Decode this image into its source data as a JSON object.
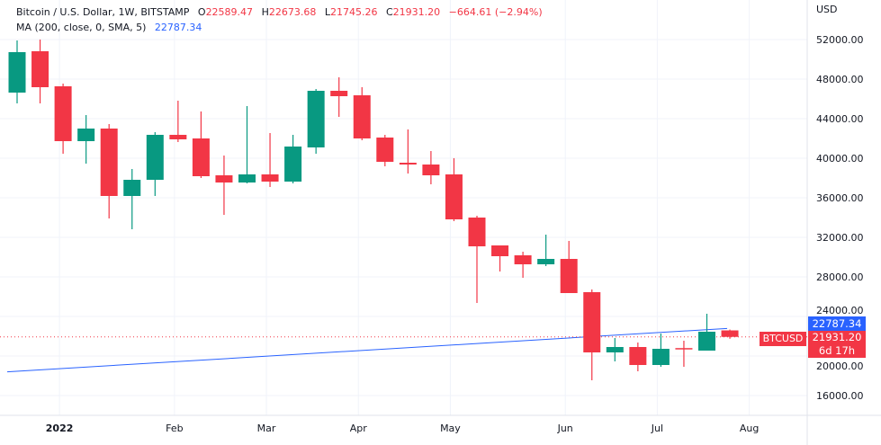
{
  "legend": {
    "symbol": "Bitcoin / U.S. Dollar, 1W, BITSTAMP",
    "open_label": "O",
    "open": "22589.47",
    "high_label": "H",
    "high": "22673.68",
    "low_label": "L",
    "low": "21745.26",
    "close_label": "C",
    "close": "21931.20",
    "change": "−664.61 (−2.94%)",
    "ma_label": "MA (200, close, 0, SMA, 5)",
    "ma_value": "22787.34"
  },
  "axis": {
    "currency": "USD"
  },
  "price_labels": {
    "ma": "22787.34",
    "last": "21931.20",
    "countdown": "6d 17h",
    "symbol": "BTCUSD"
  },
  "colors": {
    "up": "#089981",
    "down": "#f23645",
    "ma": "#2962ff",
    "grid": "#f0f3fa",
    "text": "#131722"
  },
  "chart_data": {
    "type": "candlestick",
    "title": "Bitcoin / U.S. Dollar, 1W, BITSTAMP",
    "ylim": [
      14000,
      53500
    ],
    "yticks": [
      16000,
      20000,
      24000,
      28000,
      32000,
      36000,
      40000,
      44000,
      48000,
      52000
    ],
    "ytick_labels": [
      "16000.00",
      "20000.00",
      "24000.00",
      "28000.00",
      "32000.00",
      "36000.00",
      "40000.00",
      "44000.00",
      "48000.00",
      "52000.00"
    ],
    "xticks": [
      {
        "label": "2022",
        "index": 2,
        "bold": true
      },
      {
        "label": "Feb",
        "index": 7
      },
      {
        "label": "Mar",
        "index": 11
      },
      {
        "label": "Apr",
        "index": 15
      },
      {
        "label": "May",
        "index": 19
      },
      {
        "label": "Jun",
        "index": 24
      },
      {
        "label": "Jul",
        "index": 28
      },
      {
        "label": "Aug",
        "index": 32
      }
    ],
    "candles": [
      [
        46636,
        51909,
        45545,
        50727
      ],
      [
        50818,
        52000,
        45545,
        47182
      ],
      [
        47273,
        47545,
        40455,
        41727
      ],
      [
        41727,
        44364,
        39455,
        43000
      ],
      [
        43000,
        43455,
        33909,
        36182
      ],
      [
        36182,
        38909,
        32818,
        37818
      ],
      [
        37818,
        42636,
        36182,
        42364
      ],
      [
        42364,
        45818,
        41636,
        41909
      ],
      [
        42000,
        44727,
        38000,
        38182
      ],
      [
        38273,
        40273,
        34273,
        37545
      ],
      [
        37545,
        45273,
        37455,
        38364
      ],
      [
        38364,
        42545,
        37091,
        37636
      ],
      [
        37636,
        42364,
        37455,
        41182
      ],
      [
        41091,
        47000,
        40455,
        46818
      ],
      [
        46818,
        48182,
        44182,
        46273
      ],
      [
        46364,
        47182,
        41818,
        42000
      ],
      [
        42091,
        42364,
        39182,
        39636
      ],
      [
        39545,
        42909,
        38455,
        39364
      ],
      [
        39364,
        40727,
        37364,
        38273
      ],
      [
        38364,
        40000,
        33636,
        33818
      ],
      [
        34000,
        34182,
        25364,
        31091
      ],
      [
        31182,
        31182,
        28545,
        30091
      ],
      [
        30182,
        30545,
        27909,
        29273
      ],
      [
        29273,
        32273,
        29091,
        29818
      ],
      [
        29818,
        31636,
        26364,
        26364
      ],
      [
        26455,
        26727,
        17545,
        20364
      ],
      [
        20364,
        21818,
        19455,
        20909
      ],
      [
        20909,
        21364,
        18455,
        19091
      ],
      [
        19091,
        22273,
        18909,
        20727
      ],
      [
        20800,
        21545,
        18909,
        20700
      ],
      [
        20545,
        24273,
        20545,
        22455
      ],
      [
        22589.47,
        22673.68,
        21745.26,
        21931.2
      ]
    ],
    "candle_format": [
      "open",
      "high",
      "low",
      "close"
    ],
    "ma_series": {
      "name": "MA 200",
      "start": 18400,
      "end": 22787.34
    },
    "last_price": 21931.2
  }
}
